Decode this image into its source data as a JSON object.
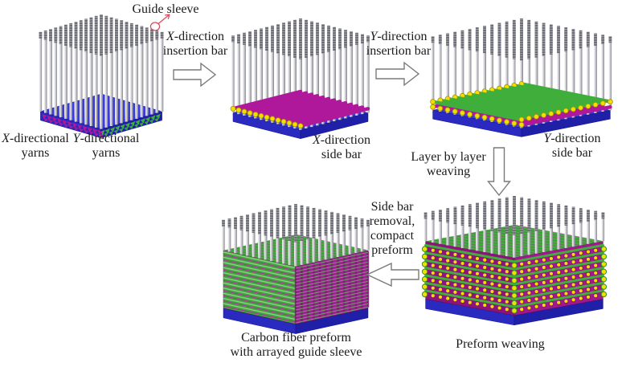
{
  "figure": {
    "description_visible_text_only": true,
    "labels_order": [
      "guide_sleeve",
      "x_insertion_bar",
      "y_insertion_bar",
      "x_directional_yarns",
      "y_directional_yarns",
      "x_side_bar",
      "y_side_bar",
      "layer_by_layer",
      "side_bar_removal",
      "preform_weaving",
      "carbon_fiber_preform"
    ]
  },
  "labels": {
    "guide_sleeve": "Guide sleeve",
    "x_directional_yarns": {
      "italic": "X",
      "line1": "-directional",
      "line2": "yarns"
    },
    "y_directional_yarns": {
      "italic": "Y",
      "line1": "-directional",
      "line2": "yarns"
    },
    "x_insertion_bar": {
      "italic": "X",
      "line1": "-direction",
      "line2": "insertion bar"
    },
    "y_insertion_bar": {
      "italic": "Y",
      "line1": "-direction",
      "line2": "insertion bar"
    },
    "x_side_bar": {
      "italic": "X",
      "line1": "-direction",
      "line2": "side bar"
    },
    "y_side_bar": {
      "italic": "Y",
      "line1": "-direction",
      "line2": "side bar"
    },
    "layer_by_layer": {
      "line1": "Layer by layer",
      "line2": "weaving"
    },
    "side_bar_removal": {
      "line1": "Side bar",
      "line2": "removal,",
      "line3": "compact",
      "line4": "preform"
    },
    "preform_weaving": "Preform weaving",
    "carbon_fiber_preform": {
      "line1": "Carbon fiber preform",
      "line2": "with arrayed guide sleeve"
    }
  },
  "colors": {
    "background": "#ffffff",
    "text": "#1b1b1b",
    "arrow_outline": "#7a7a7a",
    "annotation_red": "#d85060",
    "base_blue_top": "#3c3cd8",
    "base_blue_left": "#2a2ac0",
    "base_blue_right": "#1f1fa8",
    "pin_light": "#f2f2f4",
    "pin_dark": "#8a8a92",
    "sleeve_cap": "#6e6e76",
    "magenta_bar": "#b0189b",
    "magenta_dark": "#8c1478",
    "green_bar": "#3fae3b",
    "green_dark": "#2d8f2a",
    "yellow_ball": "#f0e000",
    "yellow_ball_edge": "#a89000"
  }
}
